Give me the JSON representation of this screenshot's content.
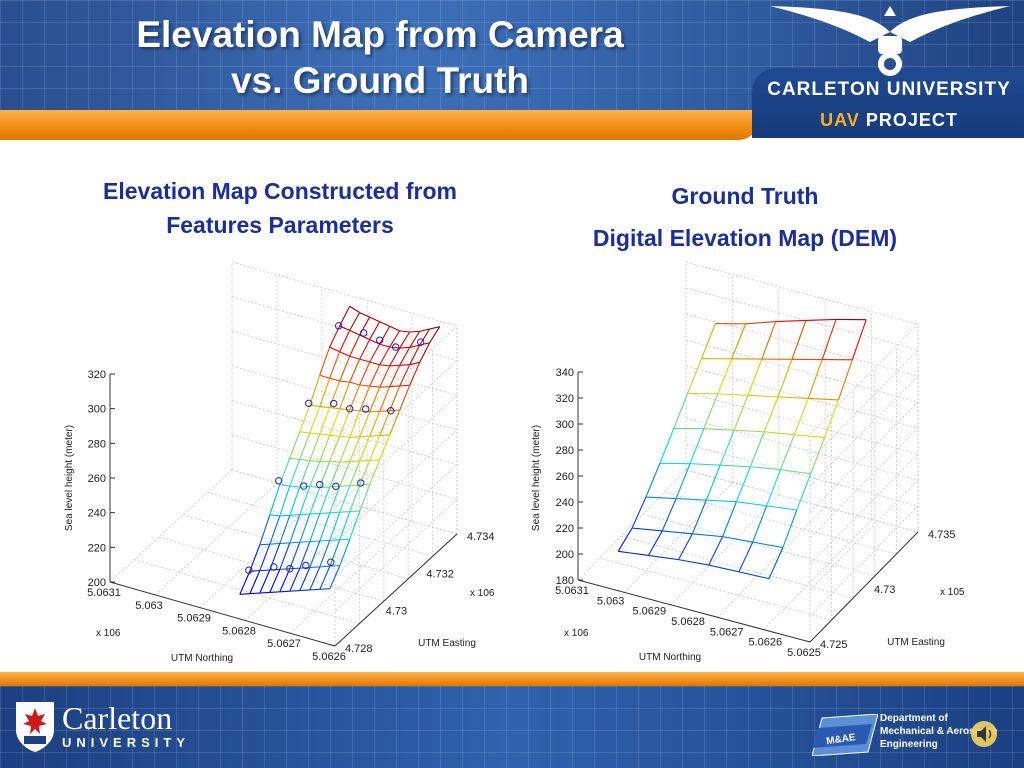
{
  "slide": {
    "title_line1": "Elevation Map from Camera",
    "title_line2": "vs. Ground Truth",
    "brand_line1": "CARLETON UNIVERSITY",
    "brand_uav": "UAV",
    "brand_project": "PROJECT",
    "left_title_line1": "Elevation Map Constructed from",
    "left_title_line2": "Features Parameters",
    "right_title_line1": "Ground Truth",
    "right_title_line2": "Digital Elevation Map (DEM)",
    "footer_name": "Carleton",
    "footer_university": "UNIVERSITY",
    "dept_line1": "Department of",
    "dept_line2": "Mechanical & Aerospace",
    "dept_line3": "Engineering",
    "badge": "M&AE"
  },
  "chart_data": [
    {
      "type": "surface",
      "title": "Elevation Map Constructed from Features Parameters",
      "zlabel": "Sea level height (meter)",
      "xlabel": "UTM Easting",
      "ylabel": "UTM Northing",
      "x_exponent": "x 10^6",
      "y_exponent": "x 10^6",
      "z_ticks": [
        "200",
        "220",
        "240",
        "260",
        "280",
        "300",
        "320"
      ],
      "x_ticks": [
        "4.728",
        "4.73",
        "4.732",
        "4.734"
      ],
      "y_ticks": [
        "5.0631",
        "5.063",
        "5.0629",
        "5.0628",
        "5.0627",
        "5.0626"
      ],
      "zlim": [
        200,
        320
      ],
      "xlim": [
        4.728,
        4.734
      ],
      "ylim": [
        5.0626,
        5.0631
      ],
      "grid": true,
      "markers": "scattered feature points (circles)",
      "z_grid": [
        [
          210,
          218,
          228,
          240,
          252,
          262,
          272,
          282,
          294,
          305,
          312,
          318
        ],
        [
          212,
          220,
          230,
          241,
          253,
          263,
          273,
          283,
          294,
          304,
          311,
          316
        ],
        [
          214,
          222,
          232,
          243,
          254,
          264,
          274,
          284,
          294,
          303,
          310,
          315
        ],
        [
          216,
          224,
          234,
          245,
          256,
          265,
          275,
          285,
          295,
          303,
          309,
          314
        ],
        [
          218,
          226,
          236,
          247,
          257,
          267,
          276,
          286,
          295,
          303,
          308,
          313
        ],
        [
          220,
          228,
          238,
          249,
          259,
          268,
          277,
          287,
          296,
          303,
          308,
          312
        ],
        [
          222,
          230,
          240,
          251,
          261,
          270,
          279,
          288,
          297,
          304,
          309,
          313
        ],
        [
          224,
          232,
          242,
          253,
          263,
          272,
          281,
          290,
          299,
          306,
          311,
          315
        ],
        [
          226,
          234,
          244,
          255,
          265,
          274,
          283,
          292,
          301,
          308,
          314,
          318
        ],
        [
          228,
          236,
          246,
          257,
          267,
          276,
          285,
          294,
          303,
          311,
          317,
          321
        ]
      ]
    },
    {
      "type": "surface",
      "title": "Ground Truth Digital Elevation Map (DEM)",
      "zlabel": "Sea level height (meter)",
      "xlabel": "UTM Easting",
      "ylabel": "UTM Northing",
      "x_exponent": "x 10^5",
      "y_exponent": "x 10^6",
      "z_ticks": [
        "180",
        "200",
        "220",
        "240",
        "260",
        "280",
        "300",
        "320",
        "340"
      ],
      "x_ticks": [
        "4.725",
        "4.73",
        "4.735"
      ],
      "y_ticks": [
        "5.0631",
        "5.063",
        "5.0629",
        "5.0628",
        "5.0627",
        "5.0626",
        "5.0625"
      ],
      "zlim": [
        180,
        340
      ],
      "xlim": [
        4.725,
        4.735
      ],
      "ylim": [
        5.0625,
        5.0631
      ],
      "grid": true,
      "z_grid": [
        [
          205,
          212,
          225,
          240,
          256,
          272,
          288,
          304
        ],
        [
          208,
          216,
          230,
          246,
          262,
          278,
          294,
          310
        ],
        [
          211,
          220,
          235,
          251,
          267,
          283,
          300,
          318
        ],
        [
          213,
          224,
          240,
          256,
          272,
          288,
          306,
          325
        ],
        [
          214,
          226,
          243,
          260,
          276,
          293,
          312,
          332
        ],
        [
          215,
          228,
          246,
          263,
          280,
          298,
          318,
          338
        ]
      ]
    }
  ]
}
